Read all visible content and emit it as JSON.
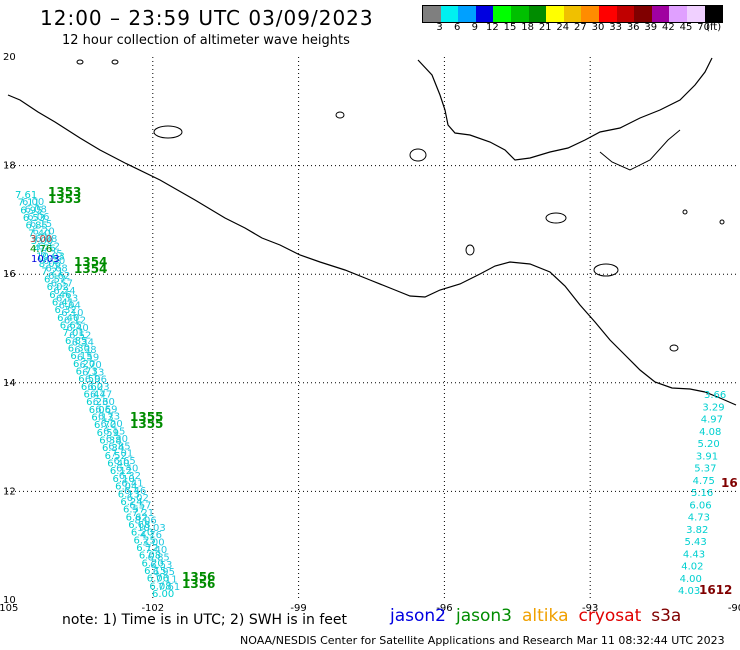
{
  "header": {
    "title": "12:00 – 23:59 UTC 03/09/2023",
    "subtitle": "12 hour collection of altimeter wave heights"
  },
  "color_scale": {
    "labels": [
      "3",
      "6",
      "9",
      "12",
      "15",
      "18",
      "21",
      "24",
      "27",
      "30",
      "33",
      "36",
      "39",
      "42",
      "45",
      "70",
      "(ft)"
    ],
    "colors": [
      "#7f7f7f",
      "#00f0f0",
      "#00a0ff",
      "#0000e0",
      "#00ff00",
      "#00c000",
      "#008c00",
      "#ffff00",
      "#f0c000",
      "#ff8c00",
      "#ff0000",
      "#c00000",
      "#800000",
      "#a000a0",
      "#e0a0ff",
      "#f0d0ff",
      "#000000"
    ]
  },
  "map": {
    "lon_labels": [
      "-105",
      "-102",
      "-99",
      "-96",
      "-93",
      "-90"
    ],
    "lat_labels": [
      "20",
      "18",
      "16",
      "14",
      "12",
      "10"
    ],
    "grid": "dotted",
    "lon_range": [
      -105,
      -90
    ],
    "lat_range": [
      10,
      20
    ]
  },
  "passes": {
    "west_times": [
      "1353",
      "1354",
      "1355",
      "1356"
    ],
    "east_times": [
      "16",
      "1612"
    ],
    "west_values": [
      "7.61",
      "7.11",
      "6.95",
      "6.53",
      "6.85",
      "7.40",
      "3.00",
      "4.76",
      "10.03",
      "8.06",
      "7.21",
      "6.57",
      "6.02",
      "6.46",
      "6.41",
      "6.32",
      "6.40",
      "6.65",
      "7.01",
      "6.85",
      "6.30",
      "6.15",
      "6.20",
      "6.73",
      "6.59",
      "6.60",
      "6.47",
      "6.23",
      "6.06",
      "6.13",
      "6.70",
      "6.59",
      "6.38",
      "6.34",
      "6.52",
      "6.40",
      "6.12",
      "6.10",
      "6.04",
      "6.13",
      "6.24",
      "6.57",
      "6.62",
      "6.68",
      "6.20",
      "6.25",
      "6.12",
      "6.08",
      "6.20",
      "6.15",
      "6.06",
      "6.08",
      "6.00"
    ],
    "east_values": [
      "3.66",
      "3.29",
      "4.97",
      "4.08",
      "5.20",
      "3.91",
      "5.37",
      "4.75",
      "5.16",
      "6.06",
      "4.73",
      "3.82",
      "5.43",
      "4.43",
      "4.02",
      "4.00",
      "4.03"
    ]
  },
  "note": "note:  1) Time is in UTC;  2) SWH is in feet",
  "satellites": [
    {
      "name": "jason2",
      "color": "#0000e0"
    },
    {
      "name": "jason3",
      "color": "#008c00"
    },
    {
      "name": "altika",
      "color": "#f0a000"
    },
    {
      "name": "cryosat",
      "color": "#e00000"
    },
    {
      "name": "s3a",
      "color": "#800000"
    }
  ],
  "footer": "NOAA/NESDIS Center for Satellite Applications and Research   Mar 11 08:32:44 UTC 2023"
}
